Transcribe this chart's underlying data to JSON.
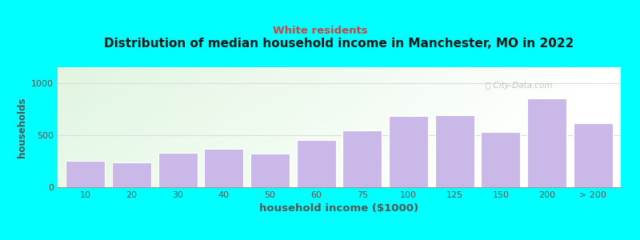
{
  "title": "Distribution of median household income in Manchester, MO in 2022",
  "subtitle": "White residents",
  "xlabel": "household income ($1000)",
  "ylabel": "households",
  "background_color": "#00FFFF",
  "bar_color": "#c9b8e8",
  "bar_edge_color": "#ffffff",
  "title_color": "#1a1a1a",
  "subtitle_color": "#cc4444",
  "axis_color": "#555555",
  "tick_color": "#555555",
  "categories": [
    "10",
    "20",
    "30",
    "40",
    "50",
    "60",
    "75",
    "100",
    "125",
    "150",
    "200",
    "> 200"
  ],
  "values": [
    255,
    240,
    330,
    370,
    320,
    450,
    545,
    680,
    690,
    530,
    850,
    610
  ],
  "ylim": [
    0,
    1150
  ],
  "yticks": [
    0,
    500,
    1000
  ],
  "watermark": "City-Data.com"
}
